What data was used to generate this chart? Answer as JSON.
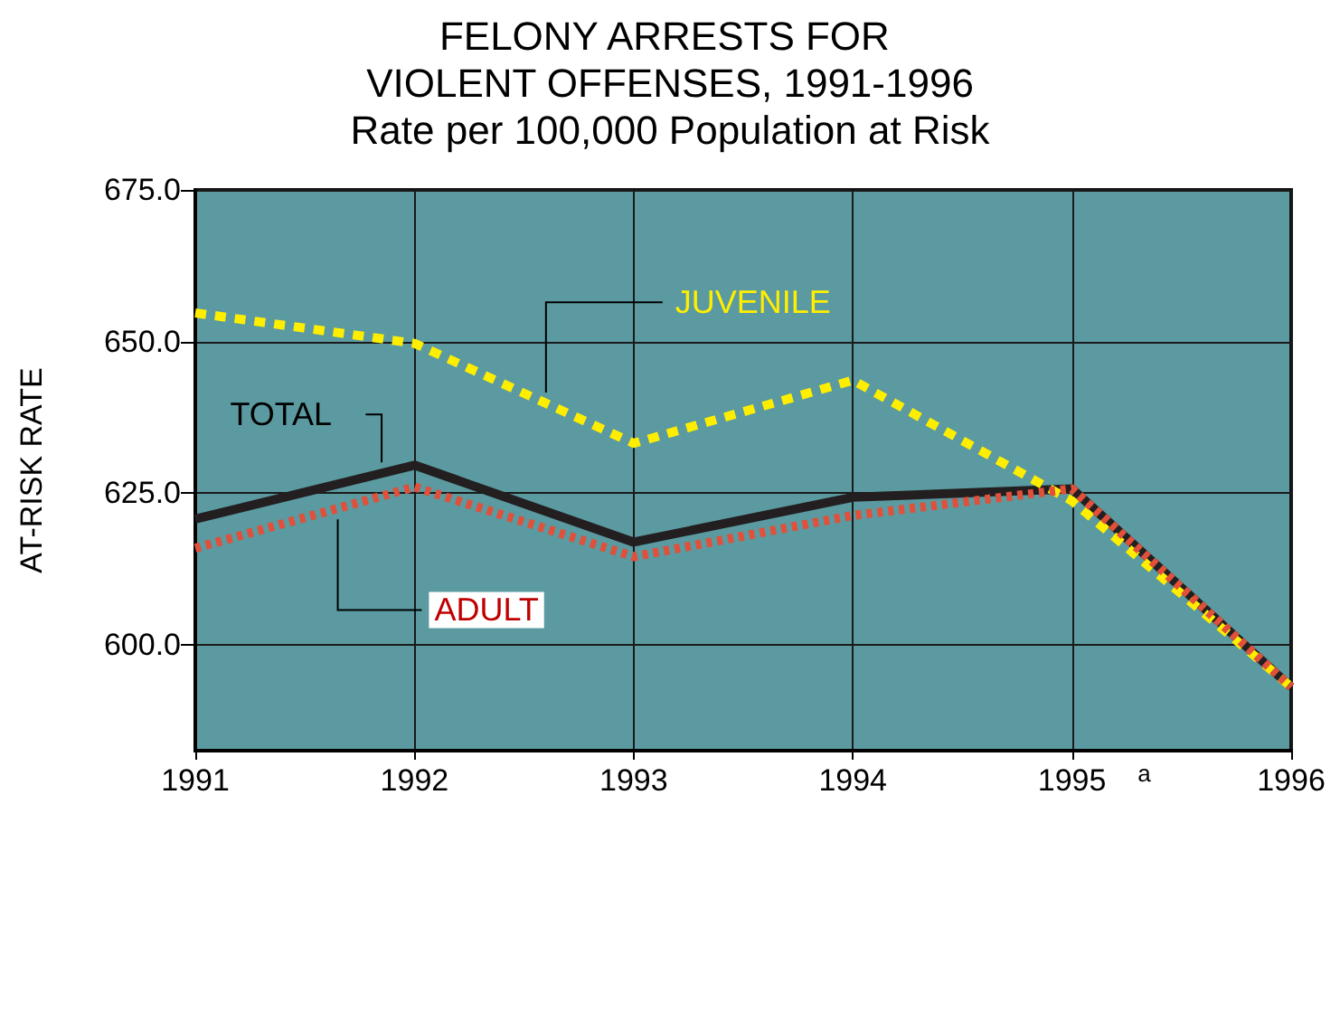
{
  "chart_data": {
    "type": "line",
    "title": "FELONY ARRESTS FOR VIOLENT OFFENSES, 1991-1996",
    "subtitle": "Rate per 100,000 Population at Risk",
    "ylabel": "AT-RISK RATE",
    "x": [
      1991,
      1992,
      1993,
      1994,
      1995,
      1996
    ],
    "xlim": [
      1991,
      1996
    ],
    "xticks": [
      1991,
      1992,
      1993,
      1994,
      1995,
      1996
    ],
    "ylim": [
      582.5,
      675
    ],
    "yticks": [
      {
        "value": 600,
        "label": "600.0"
      },
      {
        "value": 625,
        "label": "625.0"
      },
      {
        "value": 650,
        "label": "650.0"
      },
      {
        "value": 675,
        "label": "675.0"
      }
    ],
    "series": [
      {
        "name": "TOTAL",
        "color": "#231f20",
        "line_style": "solid",
        "values": [
          620.7,
          629.6,
          616.9,
          624.3,
          625.7,
          593
        ]
      },
      {
        "name": "JUVENILE",
        "color": "#ffee00",
        "line_style": "dashed",
        "values": [
          654.7,
          649.7,
          633.2,
          643.6,
          623.7,
          593
        ]
      },
      {
        "name": "ADULT",
        "color": "#e0503a",
        "line_style": "dotted",
        "values": [
          615.9,
          626,
          614.5,
          621.3,
          625.7,
          593
        ]
      }
    ],
    "annotations": [
      "a"
    ],
    "grid": true,
    "legend": false,
    "marker": "none"
  }
}
